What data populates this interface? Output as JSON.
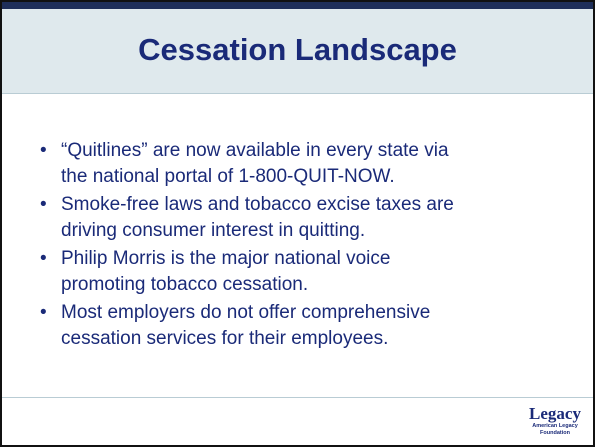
{
  "slide": {
    "title": "Cessation Landscape",
    "bullets": [
      [
        "“Quitlines” are now available in every state via",
        "the national portal of 1-800-QUIT-NOW."
      ],
      [
        "Smoke-free laws and tobacco excise taxes are",
        "driving consumer interest in quitting."
      ],
      [
        "Philip Morris is the major national voice",
        "promoting tobacco cessation."
      ],
      [
        "Most employers do not offer comprehensive",
        "cessation services for their employees."
      ]
    ],
    "logo": {
      "name": "Legacy",
      "subtitle": [
        "American Legacy",
        "Foundation"
      ]
    }
  }
}
